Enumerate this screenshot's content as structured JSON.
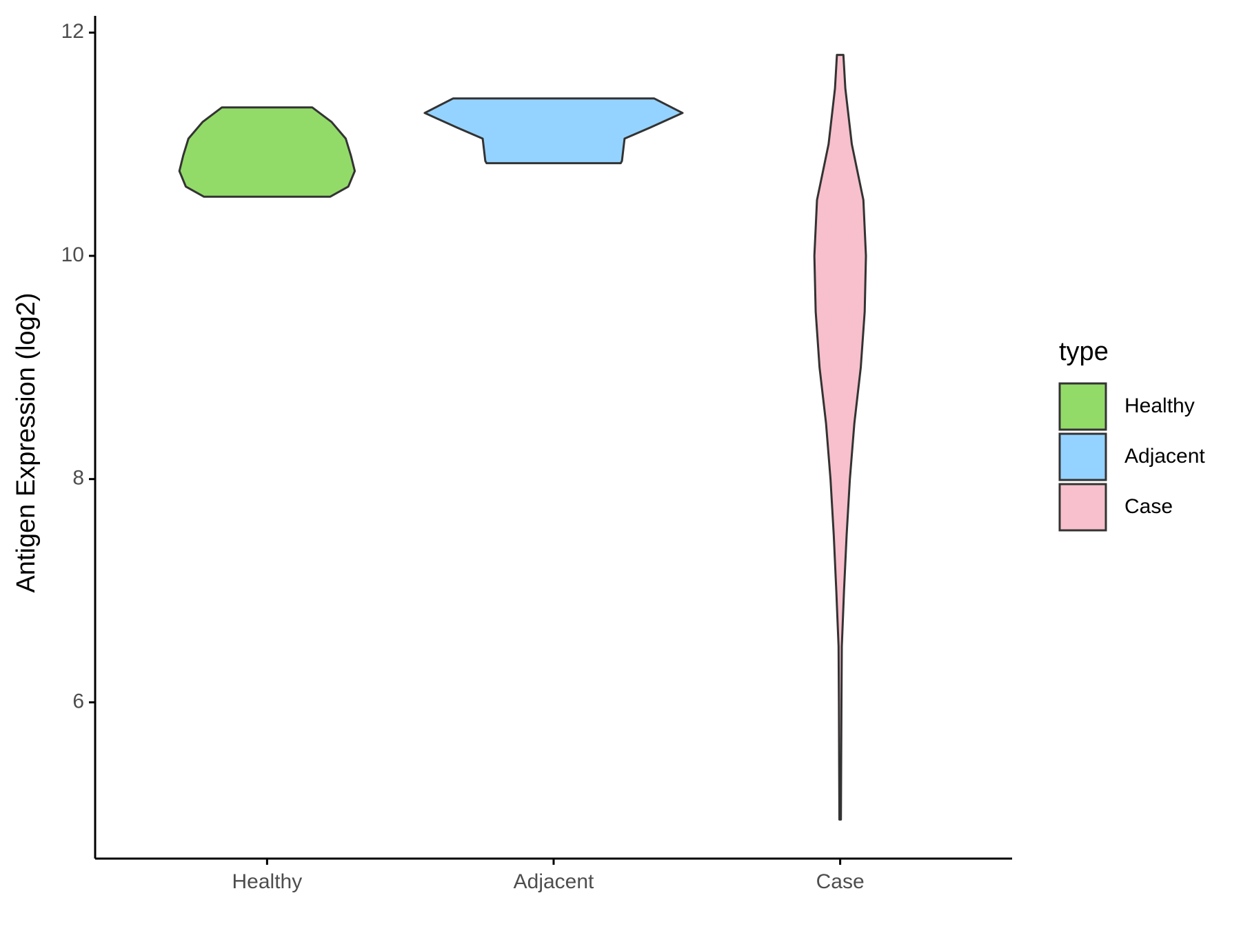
{
  "chart_data": {
    "type": "violin",
    "ylabel": "Antigen Expression (log2)",
    "legend_title": "type",
    "legend_position": "right",
    "categories": [
      "Healthy",
      "Adjacent",
      "Case"
    ],
    "ylim": [
      4.6,
      12.15
    ],
    "yticks": [
      6,
      8,
      10,
      12
    ],
    "series": [
      {
        "name": "Healthy",
        "color": "#93DB69",
        "y": [
          11.33,
          11.2,
          11.05,
          10.9,
          10.76,
          10.62,
          10.53
        ],
        "density": [
          0.35,
          0.5,
          0.61,
          0.65,
          0.68,
          0.63,
          0.49
        ]
      },
      {
        "name": "Adjacent",
        "color": "#94D3FF",
        "y": [
          11.41,
          11.28,
          11.15,
          11.05,
          10.95,
          10.85,
          10.83
        ],
        "density": [
          0.78,
          1.0,
          0.75,
          0.55,
          0.54,
          0.53,
          0.52
        ]
      },
      {
        "name": "Case",
        "color": "#F7C0CC",
        "y": [
          11.8,
          11.5,
          11.0,
          10.5,
          10.0,
          9.5,
          9.0,
          8.5,
          8.0,
          7.5,
          7.0,
          6.5,
          6.0,
          5.5,
          4.95
        ],
        "density": [
          0.025,
          0.04,
          0.09,
          0.18,
          0.2,
          0.19,
          0.16,
          0.11,
          0.075,
          0.05,
          0.03,
          0.0125,
          0.01,
          0.008,
          0.006
        ]
      }
    ]
  }
}
